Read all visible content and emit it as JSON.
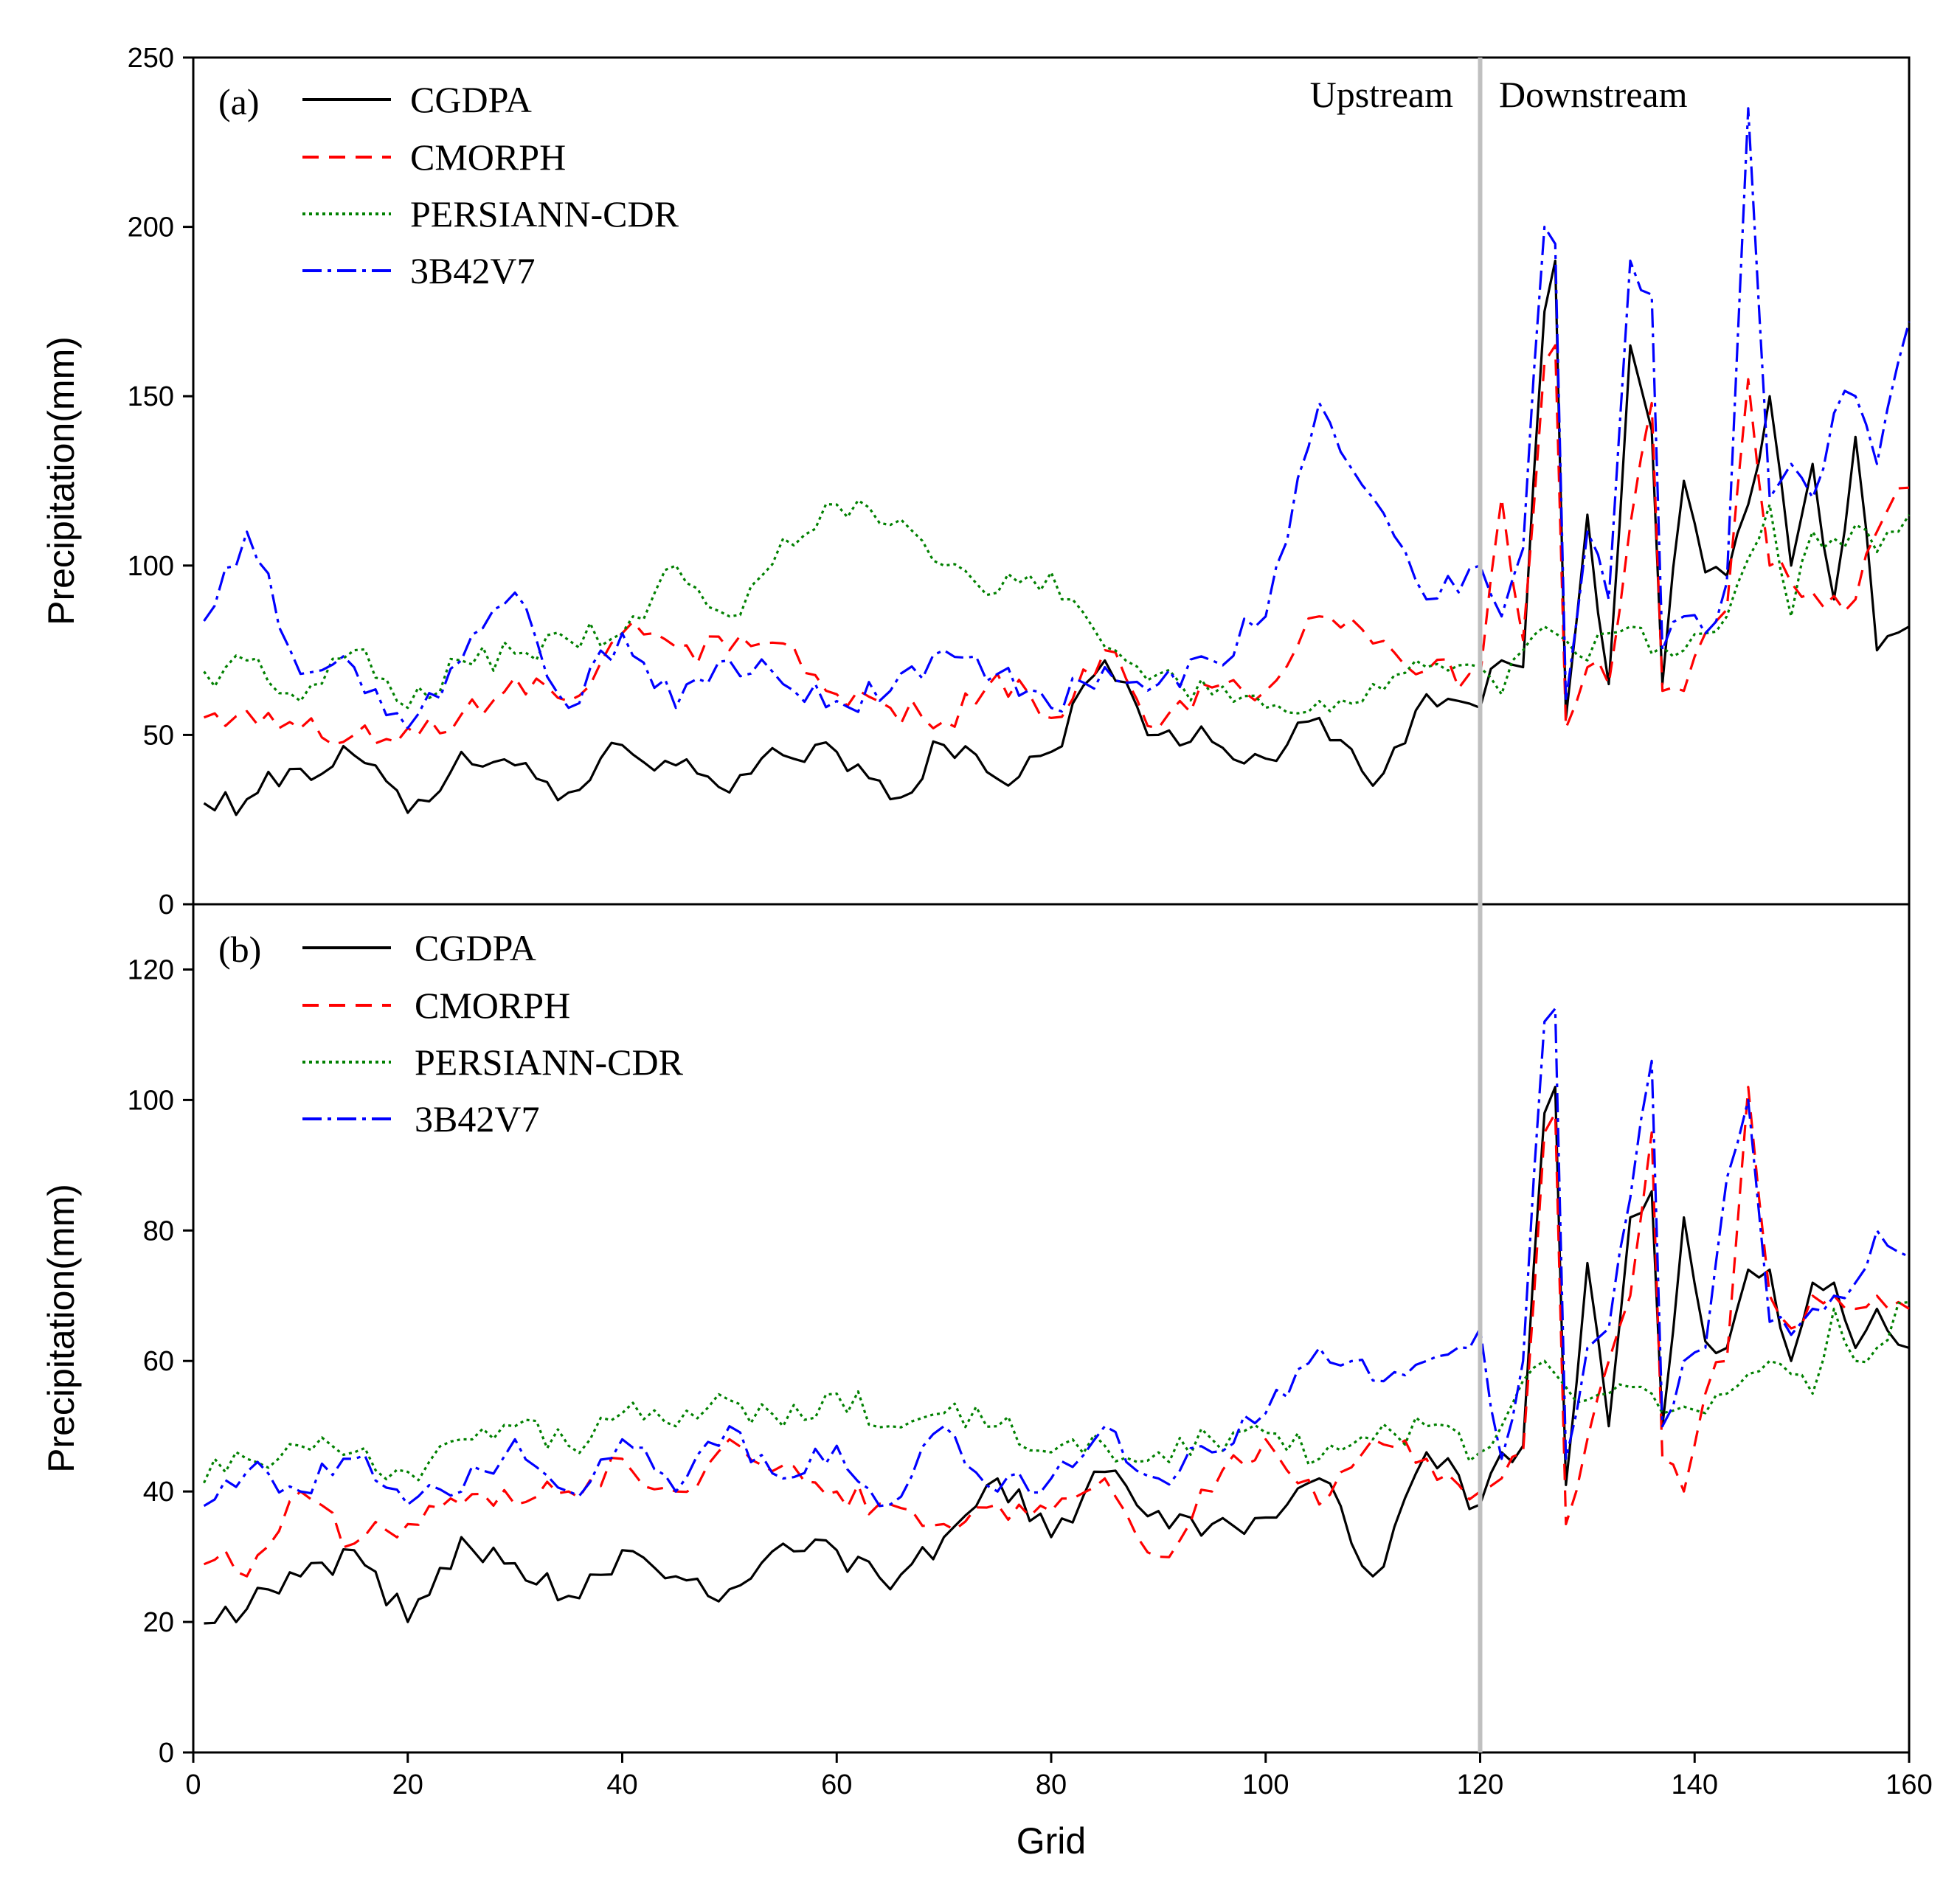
{
  "x_axis": {
    "label": "Grid",
    "ticks": [
      0,
      20,
      40,
      60,
      80,
      100,
      120,
      140,
      160
    ]
  },
  "divider": {
    "x": 120,
    "left_label": "Upstream",
    "right_label": "Downstream",
    "color": "#c0c0c0"
  },
  "series_styles": [
    {
      "name": "CGDPA",
      "color": "#000000",
      "dash": "none"
    },
    {
      "name": "CMORPH",
      "color": "#ff0000",
      "dash": "22,14"
    },
    {
      "name": "PERSIANN-CDR",
      "color": "#008000",
      "dash": "4,5"
    },
    {
      "name": "3B42V7",
      "color": "#0000ff",
      "dash": "26,8,5,8"
    }
  ],
  "chart_data": [
    {
      "type": "line",
      "panel_label": "(a)",
      "xlabel": "Grid",
      "ylabel": "Precipitation(mm)",
      "xlim": [
        0,
        160
      ],
      "ylim": [
        0,
        250
      ],
      "yticks": [
        0,
        50,
        100,
        150,
        200,
        250
      ],
      "x_anchors": [
        0,
        5,
        10,
        15,
        20,
        25,
        30,
        35,
        40,
        45,
        50,
        55,
        60,
        65,
        70,
        75,
        80,
        85,
        90,
        95,
        100,
        105,
        110,
        115,
        120,
        122,
        124,
        126,
        127,
        128,
        130,
        132,
        134,
        136,
        137,
        139,
        141,
        143,
        145,
        147,
        149,
        151,
        153,
        155,
        157,
        160
      ],
      "series": [
        {
          "name": "CGDPA",
          "values": [
            28,
            31,
            40,
            44,
            27,
            45,
            41,
            33,
            47,
            41,
            33,
            44,
            45,
            31,
            47,
            37,
            45,
            72,
            50,
            48,
            43,
            55,
            35,
            62,
            58,
            72,
            70,
            175,
            190,
            55,
            115,
            65,
            165,
            140,
            65,
            125,
            98,
            97,
            118,
            150,
            100,
            130,
            90,
            138,
            75,
            82
          ]
        },
        {
          "name": "CMORPH",
          "values": [
            53,
            57,
            52,
            50,
            52,
            56,
            67,
            60,
            80,
            76,
            75,
            77,
            62,
            58,
            54,
            68,
            55,
            75,
            52,
            64,
            63,
            85,
            77,
            69,
            67,
            120,
            78,
            160,
            165,
            52,
            70,
            65,
            112,
            148,
            63,
            63,
            80,
            87,
            155,
            100,
            95,
            92,
            91,
            90,
            110,
            123
          ]
        },
        {
          "name": "PERSIANN-CDR",
          "values": [
            66,
            72,
            60,
            75,
            58,
            72,
            74,
            78,
            80,
            100,
            85,
            108,
            118,
            112,
            100,
            92,
            98,
            76,
            68,
            62,
            58,
            60,
            65,
            70,
            70,
            62,
            75,
            82,
            80,
            78,
            72,
            80,
            82,
            74,
            76,
            75,
            80,
            85,
            102,
            118,
            85,
            110,
            108,
            112,
            104,
            115
          ]
        },
        {
          "name": "3B42V7",
          "values": [
            75,
            110,
            68,
            70,
            52,
            72,
            92,
            58,
            80,
            58,
            72,
            65,
            60,
            63,
            75,
            68,
            58,
            70,
            65,
            72,
            85,
            148,
            120,
            90,
            100,
            85,
            105,
            200,
            195,
            60,
            110,
            90,
            190,
            180,
            75,
            85,
            80,
            95,
            235,
            120,
            130,
            120,
            145,
            150,
            130,
            172
          ]
        }
      ],
      "legend": [
        "CGDPA",
        "CMORPH",
        "PERSIANN-CDR",
        "3B42V7"
      ],
      "legend_position": "top-left"
    },
    {
      "type": "line",
      "panel_label": "(b)",
      "xlabel": "Grid",
      "ylabel": "Precipitation(mm)",
      "xlim": [
        0,
        160
      ],
      "ylim": [
        0,
        130
      ],
      "yticks": [
        0,
        20,
        40,
        60,
        80,
        100,
        120
      ],
      "x_anchors": [
        0,
        5,
        10,
        15,
        20,
        25,
        30,
        35,
        40,
        45,
        50,
        55,
        60,
        65,
        70,
        75,
        80,
        85,
        90,
        95,
        100,
        105,
        110,
        115,
        120,
        122,
        124,
        126,
        127,
        128,
        130,
        132,
        134,
        136,
        137,
        139,
        141,
        143,
        145,
        147,
        149,
        151,
        153,
        155,
        157,
        160
      ],
      "series": [
        {
          "name": "CGDPA",
          "values": [
            22,
            22,
            27,
            31,
            20,
            33,
            29,
            24,
            31,
            27,
            25,
            32,
            31,
            25,
            33,
            42,
            33,
            43,
            37,
            35,
            36,
            42,
            27,
            46,
            38,
            46,
            47,
            98,
            102,
            41,
            75,
            50,
            82,
            86,
            50,
            82,
            63,
            62,
            74,
            74,
            60,
            72,
            72,
            62,
            68,
            62
          ]
        },
        {
          "name": "CMORPH",
          "values": [
            32,
            27,
            40,
            32,
            35,
            38,
            38,
            40,
            45,
            40,
            48,
            44,
            40,
            38,
            35,
            38,
            37,
            42,
            30,
            40,
            48,
            38,
            48,
            45,
            40,
            42,
            46,
            95,
            98,
            35,
            48,
            60,
            70,
            95,
            45,
            40,
            55,
            60,
            102,
            70,
            65,
            70,
            70,
            68,
            70,
            68
          ]
        },
        {
          "name": "PERSIANN-CDR",
          "values": [
            43,
            45,
            47,
            46,
            43,
            48,
            50,
            47,
            52,
            50,
            54,
            50,
            55,
            50,
            52,
            50,
            46,
            47,
            46,
            48,
            49,
            45,
            48,
            50,
            46,
            50,
            57,
            60,
            58,
            56,
            54,
            55,
            56,
            55,
            52,
            53,
            52,
            55,
            58,
            60,
            58,
            55,
            68,
            60,
            62,
            69
          ]
        },
        {
          "name": "3B42V7",
          "values": [
            39,
            43,
            40,
            45,
            38,
            40,
            48,
            40,
            48,
            40,
            50,
            42,
            47,
            38,
            50,
            40,
            42,
            50,
            42,
            46,
            52,
            62,
            57,
            60,
            65,
            45,
            60,
            112,
            114,
            45,
            62,
            65,
            85,
            106,
            50,
            60,
            62,
            88,
            100,
            66,
            64,
            68,
            70,
            72,
            80,
            76
          ]
        }
      ],
      "legend": [
        "CGDPA",
        "CMORPH",
        "PERSIANN-CDR",
        "3B42V7"
      ],
      "legend_position": "top-left"
    }
  ]
}
